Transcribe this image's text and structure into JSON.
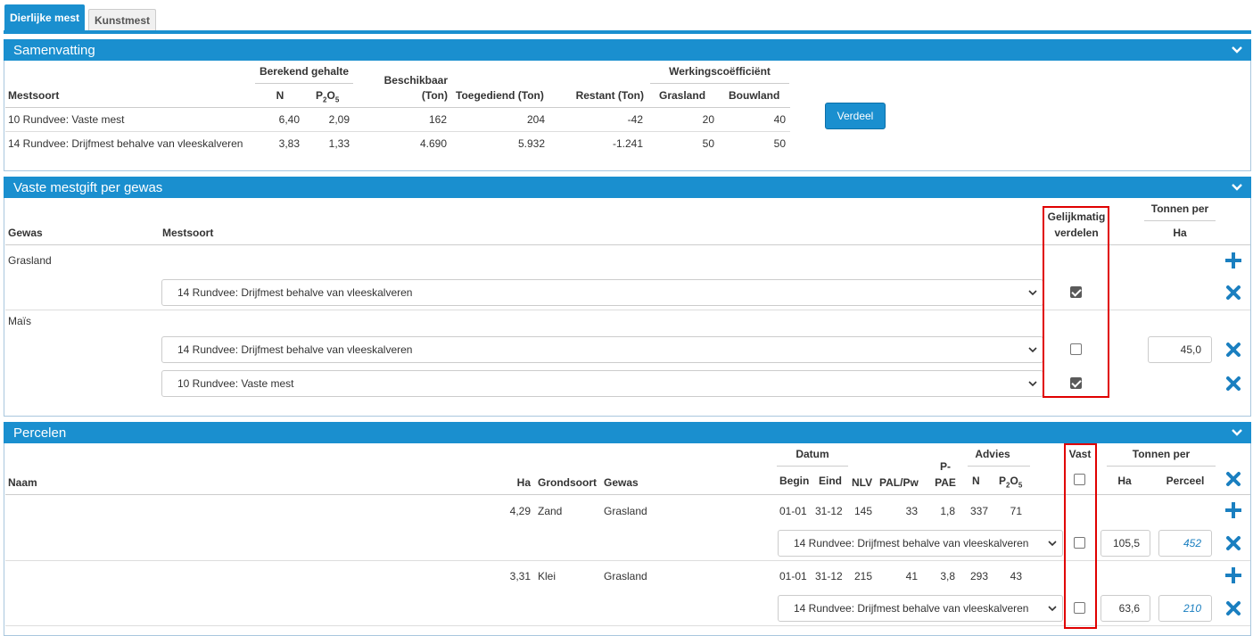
{
  "tabs": [
    {
      "label": "Dierlijke mest"
    },
    {
      "label": "Kunstmest"
    }
  ],
  "samenvatting": {
    "title": "Samenvatting",
    "headers": {
      "mestsoort": "Mestsoort",
      "berekend_gehalte": "Berekend gehalte",
      "n": "N",
      "p2o5_base": "P",
      "p2o5_sub1": "2",
      "p2o5_o": "O",
      "p2o5_sub2": "5",
      "beschikbaar_1": "Beschikbaar",
      "beschikbaar_2": "(Ton)",
      "toegediend": "Toegediend (Ton)",
      "restant": "Restant (Ton)",
      "werkingscoefficient": "Werkingscoëfficiënt",
      "grasland": "Grasland",
      "bouwland": "Bouwland"
    },
    "rows": [
      {
        "mestsoort": "10 Rundvee: Vaste mest",
        "n": "6,40",
        "p2o5": "2,09",
        "beschikbaar": "162",
        "toegediend": "204",
        "restant": "-42",
        "grasland": "20",
        "bouwland": "40"
      },
      {
        "mestsoort": "14 Rundvee: Drijfmest behalve van vleeskalveren",
        "n": "3,83",
        "p2o5": "1,33",
        "beschikbaar": "4.690",
        "toegediend": "5.932",
        "restant": "-1.241",
        "grasland": "50",
        "bouwland": "50"
      }
    ],
    "verdeel_label": "Verdeel"
  },
  "vaste": {
    "title": "Vaste mestgift per gewas",
    "headers": {
      "gewas": "Gewas",
      "mestsoort": "Mestsoort",
      "gelijk_1": "Gelijkmatig",
      "gelijk_2": "verdelen",
      "tonnen_per": "Tonnen per",
      "ha": "Ha"
    },
    "groups": [
      {
        "gewas": "Grasland",
        "rows": [
          {
            "mestsoort": "14 Rundvee: Drijfmest behalve van vleeskalveren",
            "gelijk": true,
            "tonnen": ""
          }
        ]
      },
      {
        "gewas": "Maïs",
        "rows": [
          {
            "mestsoort": "14 Rundvee: Drijfmest behalve van vleeskalveren",
            "gelijk": false,
            "tonnen": "45,0"
          },
          {
            "mestsoort": "10 Rundvee: Vaste mest",
            "gelijk": true,
            "tonnen": ""
          }
        ]
      }
    ]
  },
  "percelen": {
    "title": "Percelen",
    "headers": {
      "naam": "Naam",
      "ha": "Ha",
      "grondsoort": "Grondsoort",
      "gewas": "Gewas",
      "datum": "Datum",
      "begin": "Begin",
      "eind": "Eind",
      "nlv": "NLV",
      "pal_pw": "PAL/Pw",
      "p_pae_1": "P-",
      "p_pae_2": "PAE",
      "advies": "Advies",
      "n": "N",
      "p2o5_base": "P",
      "p2o5_sub1": "2",
      "p2o5_o": "O",
      "p2o5_sub2": "5",
      "vast": "Vast",
      "tonnen_per": "Tonnen per",
      "tonnen_ha": "Ha",
      "perceel": "Perceel"
    },
    "rows": [
      {
        "naam": "",
        "ha": "4,29",
        "grondsoort": "Zand",
        "gewas": "Grasland",
        "begin": "01-01",
        "eind": "31-12",
        "nlv": "145",
        "pal_pw": "33",
        "p_pae": "1,8",
        "n": "337",
        "p2o5": "71",
        "mest": {
          "mestsoort": "14 Rundvee: Drijfmest behalve van vleeskalveren",
          "vast": false,
          "ha": "105,5",
          "perceel": "452"
        }
      },
      {
        "naam": "",
        "ha": "3,31",
        "grondsoort": "Klei",
        "gewas": "Grasland",
        "begin": "01-01",
        "eind": "31-12",
        "nlv": "215",
        "pal_pw": "41",
        "p_pae": "3,8",
        "n": "293",
        "p2o5": "43",
        "mest": {
          "mestsoort": "14 Rundvee: Drijfmest behalve van vleeskalveren",
          "vast": false,
          "ha": "63,6",
          "perceel": "210"
        }
      }
    ]
  },
  "colors": {
    "accent": "#1a8fcf",
    "highlight": "#e00000",
    "action_icon": "#1a7fc0"
  },
  "icons": [
    "chevron-down-icon",
    "plus-icon",
    "close-icon",
    "select-arrow-icon",
    "checkbox"
  ]
}
